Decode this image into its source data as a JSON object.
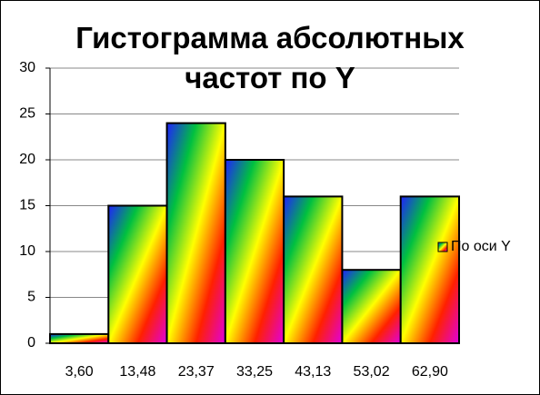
{
  "chart_data": {
    "type": "bar",
    "title": "Гистограмма абсолютных частот по Y",
    "categories": [
      "3,60",
      "13,48",
      "23,37",
      "33,25",
      "43,13",
      "53,02",
      "62,90"
    ],
    "series": [
      {
        "name": "По оси Y",
        "gradient": [
          "#2020ff",
          "#00c040",
          "#ffff00",
          "#ff2000",
          "#e000e0"
        ],
        "values": [
          1,
          15,
          24,
          20,
          16,
          8,
          16
        ]
      }
    ],
    "ylim": [
      0,
      30
    ],
    "yticks": [
      0,
      5,
      10,
      15,
      20,
      25,
      30
    ],
    "grid": true,
    "legend": "right"
  }
}
